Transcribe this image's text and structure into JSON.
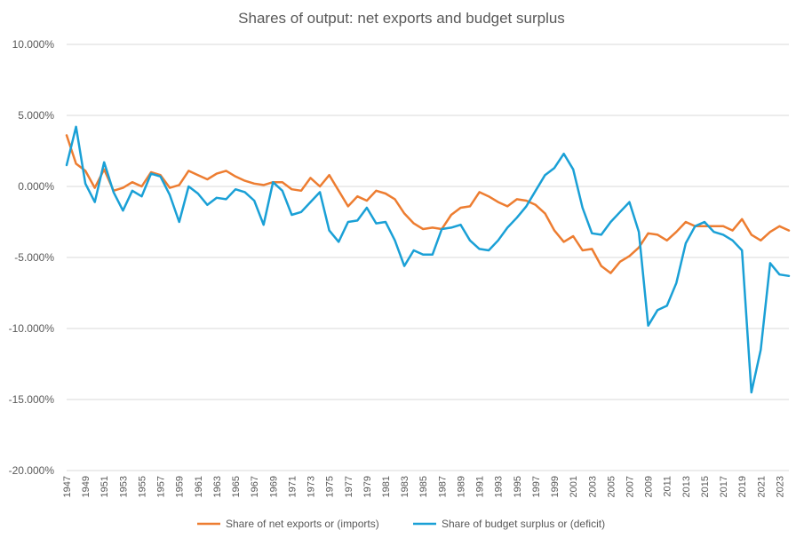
{
  "chart_data": {
    "type": "line",
    "title": "Shares of output: net exports and budget surplus",
    "xlabel": "",
    "ylabel": "",
    "ylim": [
      -0.2,
      0.1
    ],
    "y_ticks": [
      0.1,
      0.05,
      0.0,
      -0.05,
      -0.1,
      -0.15,
      -0.2
    ],
    "y_tick_labels": [
      "10.000%",
      "5.000%",
      "0.000%",
      "-5.000%",
      "-10.000%",
      "-15.000%",
      "-20.000%"
    ],
    "x_tick_labels": [
      "1947",
      "1949",
      "1951",
      "1953",
      "1955",
      "1957",
      "1959",
      "1961",
      "1963",
      "1965",
      "1967",
      "1969",
      "1971",
      "1973",
      "1975",
      "1977",
      "1979",
      "1981",
      "1983",
      "1985",
      "1987",
      "1989",
      "1991",
      "1993",
      "1995",
      "1997",
      "1999",
      "2001",
      "2003",
      "2005",
      "2007",
      "2009",
      "2011",
      "2013",
      "2015",
      "2017",
      "2019",
      "2021",
      "2023"
    ],
    "x": [
      1947,
      1948,
      1949,
      1950,
      1951,
      1952,
      1953,
      1954,
      1955,
      1956,
      1957,
      1958,
      1959,
      1960,
      1961,
      1962,
      1963,
      1964,
      1965,
      1966,
      1967,
      1968,
      1969,
      1970,
      1971,
      1972,
      1973,
      1974,
      1975,
      1976,
      1977,
      1978,
      1979,
      1980,
      1981,
      1982,
      1983,
      1984,
      1985,
      1986,
      1987,
      1988,
      1989,
      1990,
      1991,
      1992,
      1993,
      1994,
      1995,
      1996,
      1997,
      1998,
      1999,
      2000,
      2001,
      2002,
      2003,
      2004,
      2005,
      2006,
      2007,
      2008,
      2009,
      2010,
      2011,
      2012,
      2013,
      2014,
      2015,
      2016,
      2017,
      2018,
      2019,
      2020,
      2021,
      2022,
      2023,
      2024
    ],
    "legend_position": "bottom",
    "grid": true,
    "series": [
      {
        "name": "Share of net exports or (imports)",
        "color": "#ED7D31",
        "values": [
          0.036,
          0.016,
          0.011,
          -0.001,
          0.012,
          -0.003,
          -0.001,
          0.003,
          0.0,
          0.01,
          0.008,
          -0.001,
          0.001,
          0.011,
          0.008,
          0.005,
          0.009,
          0.011,
          0.007,
          0.004,
          0.002,
          0.001,
          0.003,
          0.003,
          -0.002,
          -0.003,
          0.006,
          0.0,
          0.008,
          -0.003,
          -0.014,
          -0.007,
          -0.01,
          -0.003,
          -0.005,
          -0.009,
          -0.019,
          -0.026,
          -0.03,
          -0.029,
          -0.03,
          -0.02,
          -0.015,
          -0.014,
          -0.004,
          -0.007,
          -0.011,
          -0.014,
          -0.009,
          -0.01,
          -0.013,
          -0.019,
          -0.031,
          -0.039,
          -0.035,
          -0.045,
          -0.044,
          -0.056,
          -0.061,
          -0.053,
          -0.049,
          -0.043,
          -0.033,
          -0.034,
          -0.038,
          -0.032,
          -0.025,
          -0.028,
          -0.028,
          -0.028,
          -0.028,
          -0.031,
          -0.023,
          -0.034,
          -0.038,
          -0.032,
          -0.028,
          -0.031
        ]
      },
      {
        "name": "Share of budget surplus or (deficit)",
        "color": "#1AA0D6",
        "values": [
          0.015,
          0.042,
          0.002,
          -0.011,
          0.017,
          -0.004,
          -0.017,
          -0.003,
          -0.007,
          0.009,
          0.007,
          -0.006,
          -0.025,
          0.0,
          -0.005,
          -0.013,
          -0.008,
          -0.009,
          -0.002,
          -0.004,
          -0.01,
          -0.027,
          0.003,
          -0.003,
          -0.02,
          -0.018,
          -0.011,
          -0.004,
          -0.031,
          -0.039,
          -0.025,
          -0.024,
          -0.015,
          -0.026,
          -0.025,
          -0.038,
          -0.056,
          -0.045,
          -0.048,
          -0.048,
          -0.03,
          -0.029,
          -0.027,
          -0.038,
          -0.044,
          -0.045,
          -0.038,
          -0.029,
          -0.022,
          -0.014,
          -0.003,
          0.008,
          0.013,
          0.023,
          0.012,
          -0.015,
          -0.033,
          -0.034,
          -0.025,
          -0.018,
          -0.011,
          -0.032,
          -0.098,
          -0.087,
          -0.084,
          -0.068,
          -0.04,
          -0.028,
          -0.025,
          -0.032,
          -0.034,
          -0.038,
          -0.045,
          -0.145,
          -0.115,
          -0.054,
          -0.062,
          -0.063
        ]
      }
    ]
  }
}
